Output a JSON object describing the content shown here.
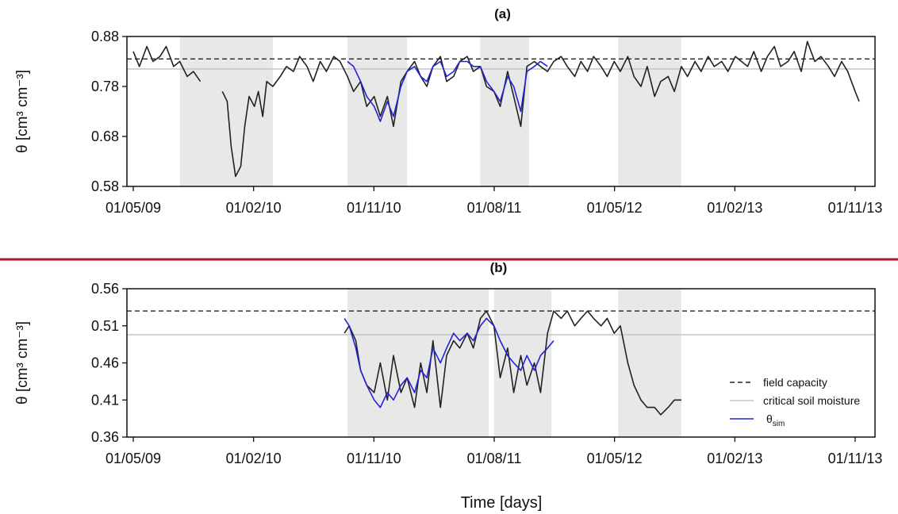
{
  "colors": {
    "observed": "#222222",
    "simulated": "#2323d6",
    "field_capacity": "#222222",
    "critical": "#c8c8c8",
    "shade": "#e8e8e8",
    "divider": "#b0163a"
  },
  "xlabel": "Time [days]",
  "x_tick_labels": [
    "01/05/09",
    "01/02/10",
    "01/11/10",
    "01/08/11",
    "01/05/12",
    "01/02/13",
    "01/11/13"
  ],
  "legend": {
    "field_capacity": "field capacity",
    "critical": "critical soil moisture",
    "sim_main": "θ",
    "sim_sub": "sim"
  },
  "chart_data": [
    {
      "type": "line",
      "title": "(a)",
      "ylabel": "θ [cm³ cm⁻³]",
      "ylim": [
        0.58,
        0.88
      ],
      "yticks": [
        "0.58",
        "0.68",
        "0.78",
        "0.88"
      ],
      "xlim": [
        "2009-05-01",
        "2013-11-01"
      ],
      "grid": false,
      "reference_lines": {
        "field_capacity": 0.835,
        "critical_soil_moisture": 0.815
      },
      "shaded_periods": [
        [
          "2009-08-15",
          "2010-03-15"
        ],
        [
          "2010-09-01",
          "2011-01-15"
        ],
        [
          "2011-07-01",
          "2011-10-20"
        ],
        [
          "2012-05-10",
          "2012-10-01"
        ]
      ],
      "series": [
        {
          "name": "",
          "kind": "observed",
          "x": [
            "2009-05-01",
            "2009-05-15",
            "2009-06-01",
            "2009-06-15",
            "2009-07-01",
            "2009-07-15",
            "2009-08-01",
            "2009-08-15",
            "2009-09-01",
            "2009-09-15",
            "2009-10-01",
            "2009-11-10",
            "2009-11-20",
            "2009-12-01",
            "2009-12-10",
            "2009-12-20",
            "2010-01-01",
            "2010-01-10",
            "2010-01-20",
            "2010-02-01",
            "2010-02-10",
            "2010-02-20",
            "2010-03-01",
            "2010-03-15",
            "2010-04-01",
            "2010-04-15",
            "2010-05-01",
            "2010-05-15",
            "2010-06-01",
            "2010-06-15",
            "2010-07-01",
            "2010-07-15",
            "2010-08-01",
            "2010-08-15",
            "2010-09-01",
            "2010-09-15",
            "2010-10-01",
            "2010-10-15",
            "2010-11-01",
            "2010-11-15",
            "2010-12-01",
            "2010-12-15",
            "2011-01-01",
            "2011-01-15",
            "2011-02-01",
            "2011-02-15",
            "2011-03-01",
            "2011-03-15",
            "2011-04-01",
            "2011-04-15",
            "2011-05-01",
            "2011-05-15",
            "2011-06-01",
            "2011-06-15",
            "2011-07-01",
            "2011-07-15",
            "2011-08-01",
            "2011-08-15",
            "2011-09-01",
            "2011-09-15",
            "2011-10-01",
            "2011-10-15",
            "2011-11-01",
            "2011-11-15",
            "2011-12-01",
            "2011-12-15",
            "2012-01-01",
            "2012-01-15",
            "2012-02-01",
            "2012-02-15",
            "2012-03-01",
            "2012-03-15",
            "2012-04-01",
            "2012-04-15",
            "2012-05-01",
            "2012-05-15",
            "2012-06-01",
            "2012-06-15",
            "2012-07-01",
            "2012-07-15",
            "2012-08-01",
            "2012-08-15",
            "2012-09-01",
            "2012-09-15",
            "2012-10-01",
            "2012-10-15",
            "2012-11-01",
            "2012-11-15",
            "2012-12-01",
            "2012-12-15",
            "2013-01-01",
            "2013-01-15",
            "2013-02-01",
            "2013-02-15",
            "2013-03-01",
            "2013-03-15",
            "2013-04-01",
            "2013-04-15",
            "2013-05-01",
            "2013-05-15",
            "2013-06-01",
            "2013-06-15",
            "2013-07-01",
            "2013-07-15",
            "2013-08-01",
            "2013-08-15",
            "2013-09-01",
            "2013-09-15",
            "2013-10-01",
            "2013-10-15",
            "2013-11-01",
            "2013-11-10"
          ],
          "y": [
            0.85,
            0.82,
            0.86,
            0.83,
            0.84,
            0.86,
            0.82,
            0.83,
            0.8,
            0.81,
            0.79,
            null,
            0.77,
            0.75,
            0.66,
            0.6,
            0.62,
            0.7,
            0.76,
            0.74,
            0.77,
            0.72,
            0.79,
            0.78,
            0.8,
            0.82,
            0.81,
            0.84,
            0.82,
            0.79,
            0.83,
            0.81,
            0.84,
            0.83,
            0.8,
            0.77,
            0.79,
            0.74,
            0.76,
            0.72,
            0.76,
            0.7,
            0.79,
            0.81,
            0.83,
            0.8,
            0.78,
            0.82,
            0.84,
            0.79,
            0.8,
            0.83,
            0.84,
            0.81,
            0.82,
            0.78,
            0.77,
            0.74,
            0.81,
            0.76,
            0.7,
            0.82,
            0.83,
            0.82,
            0.81,
            0.83,
            0.84,
            0.82,
            0.8,
            0.83,
            0.81,
            0.84,
            0.82,
            0.8,
            0.83,
            0.81,
            0.84,
            0.8,
            0.78,
            0.82,
            0.76,
            0.79,
            0.8,
            0.77,
            0.82,
            0.8,
            0.83,
            0.81,
            0.84,
            0.82,
            0.83,
            0.81,
            0.84,
            0.83,
            0.82,
            0.85,
            0.81,
            0.84,
            0.86,
            0.82,
            0.83,
            0.85,
            0.81,
            0.87,
            0.83,
            0.84,
            0.82,
            0.8,
            0.83,
            0.81,
            0.77,
            0.75
          ]
        },
        {
          "name": "θsim",
          "kind": "simulated",
          "x": [
            "2010-09-01",
            "2010-09-15",
            "2010-10-01",
            "2010-10-15",
            "2010-11-01",
            "2010-11-15",
            "2010-12-01",
            "2010-12-15",
            "2011-01-01",
            "2011-01-15",
            "2011-02-01",
            "2011-02-15",
            "2011-03-01",
            "2011-03-15",
            "2011-04-01",
            "2011-04-15",
            "2011-05-01",
            "2011-05-15",
            "2011-06-01",
            "2011-06-15",
            "2011-07-01",
            "2011-07-15",
            "2011-08-01",
            "2011-08-15",
            "2011-09-01",
            "2011-09-15",
            "2011-10-01",
            "2011-10-15",
            "2011-11-01",
            "2011-11-15",
            "2011-12-01"
          ],
          "y": [
            0.83,
            0.82,
            0.79,
            0.76,
            0.74,
            0.71,
            0.75,
            0.72,
            0.78,
            0.81,
            0.82,
            0.8,
            0.79,
            0.82,
            0.83,
            0.8,
            0.81,
            0.83,
            0.83,
            0.82,
            0.82,
            0.79,
            0.77,
            0.75,
            0.8,
            0.78,
            0.73,
            0.81,
            0.82,
            0.83,
            0.82
          ]
        }
      ]
    },
    {
      "type": "line",
      "title": "(b)",
      "ylabel": "θ [cm³ cm⁻³]",
      "ylim": [
        0.36,
        0.56
      ],
      "yticks": [
        "0.36",
        "0.41",
        "0.46",
        "0.51",
        "0.56"
      ],
      "xlim": [
        "2009-05-01",
        "2013-11-01"
      ],
      "grid": false,
      "legend_position": "bottom-right",
      "reference_lines": {
        "field_capacity": 0.53,
        "critical_soil_moisture": 0.498
      },
      "shaded_periods": [
        [
          "2010-09-01",
          "2011-07-20"
        ],
        [
          "2011-08-01",
          "2011-12-10"
        ],
        [
          "2012-05-10",
          "2012-10-01"
        ]
      ],
      "series": [
        {
          "name": "",
          "kind": "observed",
          "x": [
            "2010-08-25",
            "2010-09-05",
            "2010-09-20",
            "2010-10-01",
            "2010-10-15",
            "2010-11-01",
            "2010-11-15",
            "2010-12-01",
            "2010-12-15",
            "2011-01-01",
            "2011-01-15",
            "2011-02-01",
            "2011-02-15",
            "2011-03-01",
            "2011-03-15",
            "2011-04-01",
            "2011-04-15",
            "2011-05-01",
            "2011-05-15",
            "2011-06-01",
            "2011-06-15",
            "2011-07-01",
            "2011-07-15",
            "2011-08-01",
            "2011-08-15",
            "2011-09-01",
            "2011-09-15",
            "2011-10-01",
            "2011-10-15",
            "2011-11-01",
            "2011-11-15",
            "2011-12-01",
            "2011-12-15",
            "2012-01-01",
            "2012-01-15",
            "2012-02-01",
            "2012-02-15",
            "2012-03-01",
            "2012-03-15",
            "2012-04-01",
            "2012-04-15",
            "2012-05-01",
            "2012-05-15",
            "2012-06-01",
            "2012-06-15",
            "2012-07-01",
            "2012-07-15",
            "2012-08-01",
            "2012-08-15",
            "2012-09-01",
            "2012-09-15",
            "2012-10-01"
          ],
          "y": [
            0.5,
            0.51,
            0.49,
            0.45,
            0.43,
            0.42,
            0.46,
            0.41,
            0.47,
            0.42,
            0.44,
            0.4,
            0.46,
            0.42,
            0.49,
            0.4,
            0.47,
            0.49,
            0.48,
            0.5,
            0.48,
            0.52,
            0.53,
            0.51,
            0.44,
            0.48,
            0.42,
            0.47,
            0.43,
            0.46,
            0.42,
            0.5,
            0.53,
            0.52,
            0.53,
            0.51,
            0.52,
            0.53,
            0.52,
            0.51,
            0.52,
            0.5,
            0.51,
            0.46,
            0.43,
            0.41,
            0.4,
            0.4,
            0.39,
            0.4,
            0.41,
            0.41
          ]
        },
        {
          "name": "θsim",
          "kind": "simulated",
          "x": [
            "2010-08-25",
            "2010-09-05",
            "2010-09-20",
            "2010-10-01",
            "2010-10-15",
            "2010-11-01",
            "2010-11-15",
            "2010-12-01",
            "2010-12-15",
            "2011-01-01",
            "2011-01-15",
            "2011-02-01",
            "2011-02-15",
            "2011-03-01",
            "2011-03-15",
            "2011-04-01",
            "2011-04-15",
            "2011-05-01",
            "2011-05-15",
            "2011-06-01",
            "2011-06-15",
            "2011-07-01",
            "2011-07-15",
            "2011-08-01",
            "2011-08-15",
            "2011-09-01",
            "2011-09-15",
            "2011-10-01",
            "2011-10-15",
            "2011-11-01",
            "2011-11-15",
            "2011-12-01",
            "2011-12-15"
          ],
          "y": [
            0.52,
            0.51,
            0.48,
            0.45,
            0.43,
            0.41,
            0.4,
            0.42,
            0.41,
            0.43,
            0.44,
            0.42,
            0.45,
            0.44,
            0.48,
            0.46,
            0.48,
            0.5,
            0.49,
            0.5,
            0.49,
            0.51,
            0.52,
            0.51,
            0.49,
            0.47,
            0.46,
            0.45,
            0.47,
            0.45,
            0.47,
            0.48,
            0.49
          ]
        }
      ]
    }
  ]
}
